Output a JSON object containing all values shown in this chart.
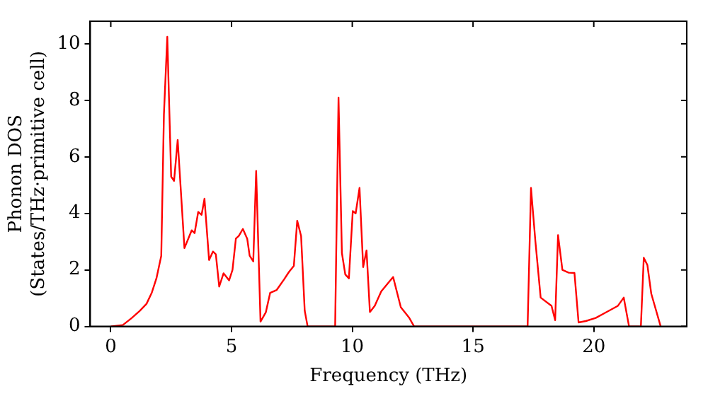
{
  "chart_data": {
    "type": "line",
    "xlabel": "Frequency (THz)",
    "ylabel": "Phonon DOS\n(States/THz·primitive cell)",
    "x": [
      0,
      0.5,
      0.87,
      1.2,
      1.48,
      1.7,
      1.89,
      2.09,
      2.2,
      2.34,
      2.5,
      2.62,
      2.77,
      3.05,
      3.35,
      3.47,
      3.62,
      3.76,
      3.88,
      4.07,
      4.23,
      4.35,
      4.49,
      4.67,
      4.9,
      5.04,
      5.18,
      5.3,
      5.47,
      5.65,
      5.75,
      5.9,
      6.02,
      6.2,
      6.42,
      6.6,
      6.87,
      7.18,
      7.38,
      7.58,
      7.72,
      7.88,
      8.03,
      8.15,
      9.29,
      9.43,
      9.57,
      9.71,
      9.86,
      10.02,
      10.14,
      10.3,
      10.45,
      10.59,
      10.73,
      10.93,
      11.2,
      11.69,
      12.01,
      12.36,
      12.56,
      17.26,
      17.4,
      17.58,
      17.8,
      18.25,
      18.4,
      18.52,
      18.7,
      18.96,
      19.2,
      19.37,
      19.67,
      20.08,
      20.45,
      21.0,
      21.24,
      21.46,
      21.95,
      22.07,
      22.22,
      22.38,
      22.77
    ],
    "series": [
      {
        "color": "#ff0000",
        "values": [
          0,
          0.05,
          0.3,
          0.55,
          0.8,
          1.2,
          1.7,
          2.5,
          7.5,
          10.25,
          5.3,
          5.15,
          6.6,
          2.77,
          3.4,
          3.3,
          4.05,
          3.95,
          4.52,
          2.35,
          2.65,
          2.55,
          1.41,
          1.88,
          1.63,
          2.0,
          3.11,
          3.2,
          3.45,
          3.1,
          2.5,
          2.3,
          5.5,
          0.17,
          0.5,
          1.19,
          1.29,
          1.67,
          1.93,
          2.14,
          3.74,
          3.2,
          0.56,
          0,
          0,
          8.1,
          2.6,
          1.84,
          1.7,
          4.08,
          4.0,
          4.9,
          2.1,
          2.69,
          0.51,
          0.73,
          1.24,
          1.75,
          0.68,
          0.3,
          0,
          0,
          4.9,
          3.03,
          1.02,
          0.73,
          0.22,
          3.23,
          2.0,
          1.9,
          1.89,
          0.14,
          0.19,
          0.3,
          0.47,
          0.73,
          1.02,
          0,
          0,
          2.43,
          2.17,
          1.16,
          0
        ]
      }
    ],
    "xlim": [
      -0.85,
      23.85
    ],
    "ylim": [
      0,
      10.8
    ],
    "xticks": [
      0,
      5,
      10,
      15,
      20
    ],
    "yticks": [
      0,
      2,
      4,
      6,
      8,
      10
    ],
    "grid": false,
    "legend": false,
    "marker": "none",
    "line_style": "solid"
  }
}
